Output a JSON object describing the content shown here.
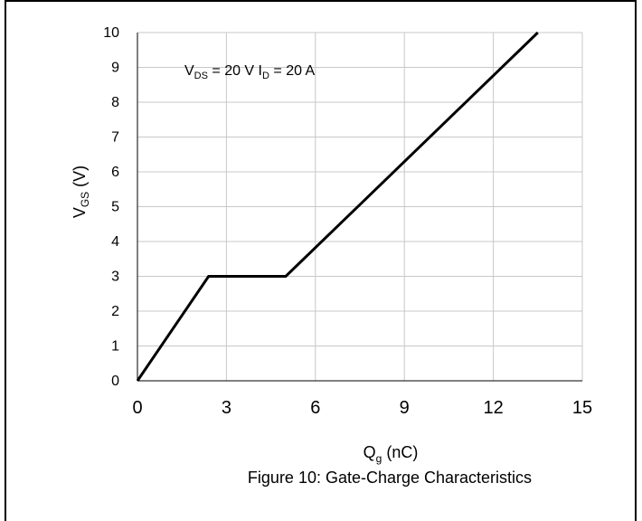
{
  "chart_data": {
    "type": "line",
    "caption": "Figure 10: Gate-Charge Characteristics",
    "xlabel": {
      "main": "Q",
      "sub": "g",
      "unit": " (nC)"
    },
    "ylabel": {
      "main": "V",
      "sub": "GS",
      "unit": " (V)"
    },
    "annotation": {
      "v_main": "V",
      "v_sub": "DS",
      "v_rest": " = 20 V ",
      "i_main": "I",
      "i_sub": "D",
      "i_rest": " = 20 A"
    },
    "xlim": [
      0,
      15
    ],
    "ylim": [
      0,
      10
    ],
    "x_ticks": [
      0,
      3,
      6,
      9,
      12,
      15
    ],
    "y_ticks": [
      0,
      1,
      2,
      3,
      4,
      5,
      6,
      7,
      8,
      9,
      10
    ],
    "grid": true,
    "series": [
      {
        "color": "#000000",
        "points": [
          [
            0,
            0
          ],
          [
            2.4,
            3
          ],
          [
            5.0,
            3
          ],
          [
            13.5,
            10
          ]
        ]
      }
    ]
  }
}
